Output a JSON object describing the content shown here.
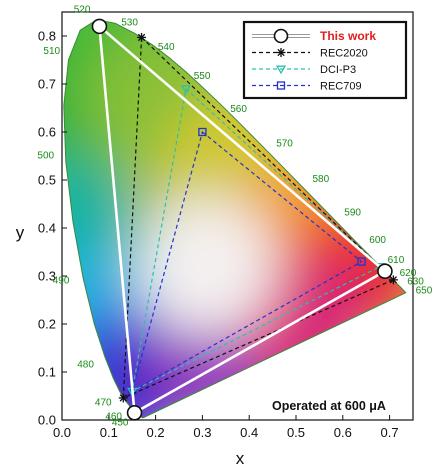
{
  "chart_data": {
    "type": "scatter",
    "xlabel": "x",
    "ylabel": "y",
    "xlim": [
      0.0,
      0.75
    ],
    "ylim": [
      0.0,
      0.85
    ],
    "x_ticks": [
      "0.0",
      "0.1",
      "0.2",
      "0.3",
      "0.4",
      "0.5",
      "0.6",
      "0.7"
    ],
    "y_ticks": [
      "0.0",
      "0.1",
      "0.2",
      "0.3",
      "0.4",
      "0.5",
      "0.6",
      "0.7",
      "0.8"
    ],
    "legend_position": "top-right",
    "annotation": "Operated at 600 μA",
    "spectral_locus": [
      [
        0.1741,
        0.005
      ],
      [
        0.1736,
        0.0049
      ],
      [
        0.1723,
        0.0048
      ],
      [
        0.1703,
        0.0058
      ],
      [
        0.1666,
        0.0089
      ],
      [
        0.1611,
        0.0138
      ],
      [
        0.1566,
        0.0177
      ],
      [
        0.151,
        0.0227
      ],
      [
        0.144,
        0.0297
      ],
      [
        0.1355,
        0.0399
      ],
      [
        0.1241,
        0.0578
      ],
      [
        0.1096,
        0.0868
      ],
      [
        0.0913,
        0.1327
      ],
      [
        0.0687,
        0.2007
      ],
      [
        0.0454,
        0.295
      ],
      [
        0.0235,
        0.4127
      ],
      [
        0.0082,
        0.5384
      ],
      [
        0.0039,
        0.6548
      ],
      [
        0.0139,
        0.7502
      ],
      [
        0.0389,
        0.812
      ],
      [
        0.0743,
        0.8338
      ],
      [
        0.1142,
        0.8262
      ],
      [
        0.1547,
        0.8059
      ],
      [
        0.1929,
        0.7816
      ],
      [
        0.2296,
        0.7543
      ],
      [
        0.2658,
        0.7243
      ],
      [
        0.3016,
        0.6923
      ],
      [
        0.3373,
        0.6589
      ],
      [
        0.3731,
        0.6245
      ],
      [
        0.4087,
        0.5896
      ],
      [
        0.4441,
        0.5547
      ],
      [
        0.4788,
        0.5202
      ],
      [
        0.5125,
        0.4866
      ],
      [
        0.5448,
        0.4544
      ],
      [
        0.5752,
        0.4242
      ],
      [
        0.6029,
        0.3965
      ],
      [
        0.627,
        0.3725
      ],
      [
        0.6482,
        0.3514
      ],
      [
        0.6658,
        0.334
      ],
      [
        0.6801,
        0.3197
      ],
      [
        0.6915,
        0.3083
      ],
      [
        0.7006,
        0.2993
      ],
      [
        0.7079,
        0.292
      ],
      [
        0.714,
        0.2859
      ],
      [
        0.719,
        0.2809
      ],
      [
        0.723,
        0.277
      ],
      [
        0.726,
        0.274
      ],
      [
        0.7283,
        0.2717
      ],
      [
        0.73,
        0.27
      ],
      [
        0.7311,
        0.2689
      ],
      [
        0.732,
        0.268
      ],
      [
        0.7327,
        0.2673
      ],
      [
        0.7334,
        0.2666
      ],
      [
        0.734,
        0.266
      ],
      [
        0.7344,
        0.2656
      ],
      [
        0.7346,
        0.2654
      ],
      [
        0.7347,
        0.2653
      ]
    ],
    "wavelength_labels": [
      {
        "text": "450",
        "x": 0.1566,
        "y": 0.0177
      },
      {
        "text": "460",
        "x": 0.144,
        "y": 0.0297
      },
      {
        "text": "470",
        "x": 0.1241,
        "y": 0.0578
      },
      {
        "text": "480",
        "x": 0.0913,
        "y": 0.1327
      },
      {
        "text": "490",
        "x": 0.0454,
        "y": 0.295
      },
      {
        "text": "500",
        "x": 0.0082,
        "y": 0.5384
      },
      {
        "text": "510",
        "x": 0.0139,
        "y": 0.7502
      },
      {
        "text": "520",
        "x": 0.0743,
        "y": 0.8338
      },
      {
        "text": "530",
        "x": 0.1547,
        "y": 0.8059
      },
      {
        "text": "540",
        "x": 0.2296,
        "y": 0.7543
      },
      {
        "text": "550",
        "x": 0.3016,
        "y": 0.6923
      },
      {
        "text": "560",
        "x": 0.3731,
        "y": 0.6245
      },
      {
        "text": "570",
        "x": 0.4441,
        "y": 0.5547
      },
      {
        "text": "580",
        "x": 0.5125,
        "y": 0.4866
      },
      {
        "text": "590",
        "x": 0.5752,
        "y": 0.4242
      },
      {
        "text": "600",
        "x": 0.627,
        "y": 0.3725
      },
      {
        "text": "610",
        "x": 0.6658,
        "y": 0.334
      },
      {
        "text": "620",
        "x": 0.6915,
        "y": 0.3083
      },
      {
        "text": "630",
        "x": 0.7079,
        "y": 0.292
      },
      {
        "text": "650",
        "x": 0.726,
        "y": 0.274
      }
    ],
    "series": [
      {
        "name": "This work",
        "color": "#ffffff",
        "marker": "circle",
        "line": "solid",
        "points": [
          [
            0.08,
            0.82
          ],
          [
            0.69,
            0.31
          ],
          [
            0.155,
            0.015
          ]
        ]
      },
      {
        "name": "REC2020",
        "color": "#111111",
        "marker": "asterisk",
        "line": "dashed",
        "points": [
          [
            0.17,
            0.797
          ],
          [
            0.708,
            0.292
          ],
          [
            0.131,
            0.046
          ]
        ]
      },
      {
        "name": "DCI-P3",
        "color": "#2cc0b0",
        "marker": "triangle-down",
        "line": "dashed",
        "points": [
          [
            0.265,
            0.69
          ],
          [
            0.68,
            0.32
          ],
          [
            0.15,
            0.06
          ]
        ]
      },
      {
        "name": "REC709",
        "color": "#2233cc",
        "marker": "square",
        "line": "dashed",
        "points": [
          [
            0.3,
            0.6
          ],
          [
            0.64,
            0.33
          ],
          [
            0.15,
            0.06
          ]
        ]
      }
    ]
  }
}
